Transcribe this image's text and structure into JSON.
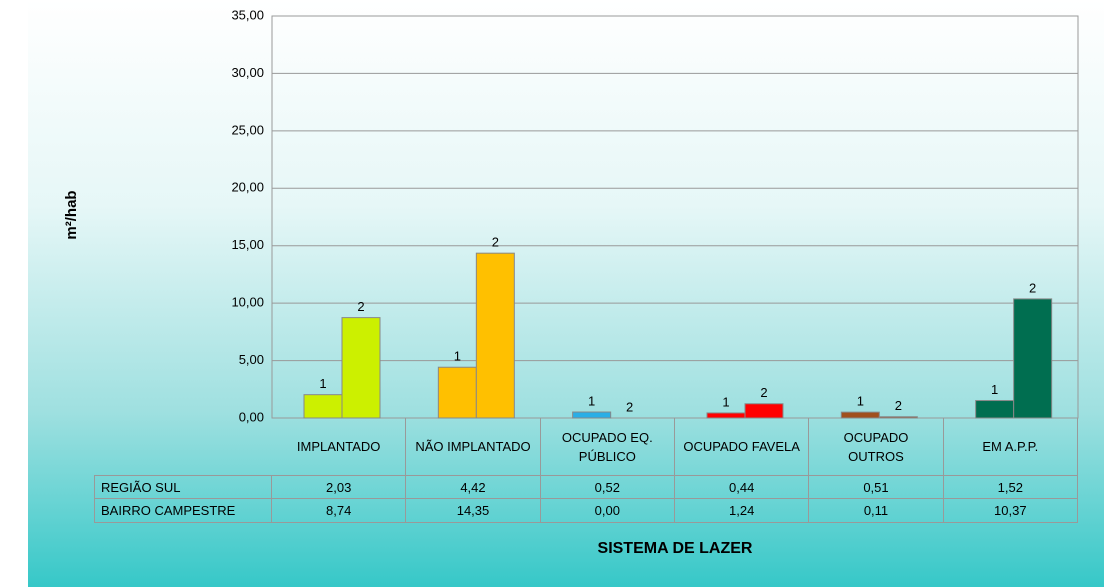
{
  "chart_data": {
    "type": "bar",
    "title_x": "SISTEMA DE LAZER",
    "title_y": "m²/hab",
    "categories": [
      "IMPLANTADO",
      "NÃO IMPLANTADO",
      "OCUPADO EQ. PÚBLICO",
      "OCUPADO FAVELA",
      "OCUPADO OUTROS",
      "EM A.P.P."
    ],
    "colors": [
      "#ccf000",
      "#ffc000",
      "#2aaee6",
      "#ff0000",
      "#a0501e",
      "#006e50"
    ],
    "series": [
      {
        "name": "REGIÃO SUL",
        "label": "1",
        "values": [
          2.03,
          4.42,
          0.52,
          0.44,
          0.51,
          1.52
        ],
        "value_labels": [
          "2,03",
          "4,42",
          "0,52",
          "0,44",
          "0,51",
          "1,52"
        ]
      },
      {
        "name": "BAIRRO CAMPESTRE",
        "label": "2",
        "values": [
          8.74,
          14.35,
          0.0,
          1.24,
          0.11,
          10.37
        ],
        "value_labels": [
          "8,74",
          "14,35",
          "0,00",
          "1,24",
          "0,11",
          "10,37"
        ]
      }
    ],
    "ylim": [
      0,
      35
    ],
    "yticks": [
      {
        "value": 0,
        "label": "0,00"
      },
      {
        "value": 5,
        "label": "5,00"
      },
      {
        "value": 10,
        "label": "10,00"
      },
      {
        "value": 15,
        "label": "15,00"
      },
      {
        "value": 20,
        "label": "20,00"
      },
      {
        "value": 25,
        "label": "25,00"
      },
      {
        "value": 30,
        "label": "30,00"
      },
      {
        "value": 35,
        "label": "35,00"
      }
    ],
    "grid": true
  }
}
